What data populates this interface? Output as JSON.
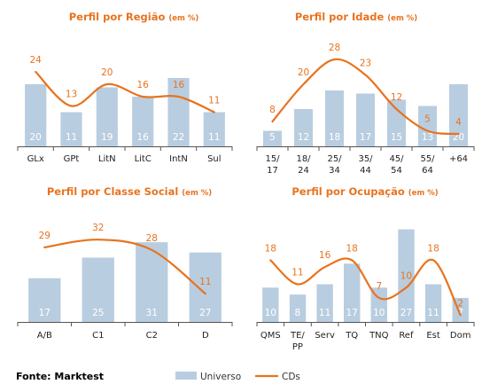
{
  "colors": {
    "universo": "#b9cde0",
    "cds": "#e8731e",
    "axis": "#555555"
  },
  "legend": {
    "universo": "Universo",
    "cds": "CDs"
  },
  "footer": "Fonte: Marktest",
  "chart_data": [
    {
      "id": "regiao",
      "type": "bar",
      "title": "Perfil por Região",
      "title_sub": "(em %)",
      "categories": [
        [
          "GLx"
        ],
        [
          "GPt"
        ],
        [
          "LitN"
        ],
        [
          "LitC"
        ],
        [
          "IntN"
        ],
        [
          "Sul"
        ]
      ],
      "series": [
        {
          "name": "Universo",
          "type": "bar",
          "values": [
            20,
            11,
            19,
            16,
            22,
            11
          ]
        },
        {
          "name": "CDs",
          "type": "line",
          "values": [
            24,
            13,
            20,
            16,
            16,
            11
          ]
        }
      ],
      "ylim": [
        0,
        30
      ]
    },
    {
      "id": "idade",
      "type": "bar",
      "title": "Perfil por Idade",
      "title_sub": "(em %)",
      "categories": [
        [
          "15/",
          "17"
        ],
        [
          "18/",
          "24"
        ],
        [
          "25/",
          "34"
        ],
        [
          "35/",
          "44"
        ],
        [
          "45/",
          "54"
        ],
        [
          "55/",
          "64"
        ],
        [
          "+64"
        ]
      ],
      "series": [
        {
          "name": "Universo",
          "type": "bar",
          "values": [
            5,
            12,
            18,
            17,
            15,
            13,
            20
          ]
        },
        {
          "name": "CDs",
          "type": "line",
          "values": [
            8,
            20,
            28,
            23,
            12,
            5,
            4
          ]
        }
      ],
      "ylim": [
        0,
        30
      ]
    },
    {
      "id": "classe",
      "type": "bar",
      "title": "Perfil por Classe Social",
      "title_sub": "(em %)",
      "categories": [
        [
          "A/B"
        ],
        [
          "C1"
        ],
        [
          "C2"
        ],
        [
          "D"
        ]
      ],
      "series": [
        {
          "name": "Universo",
          "type": "bar",
          "values": [
            17,
            25,
            31,
            27
          ]
        },
        {
          "name": "CDs",
          "type": "line",
          "values": [
            29,
            32,
            28,
            11
          ]
        }
      ],
      "ylim": [
        0,
        40
      ]
    },
    {
      "id": "ocupacao",
      "type": "bar",
      "title": "Perfil por Ocupação",
      "title_sub": "(em %)",
      "categories": [
        [
          "QMS"
        ],
        [
          "TE/",
          "PP"
        ],
        [
          "Serv"
        ],
        [
          "TQ"
        ],
        [
          "TNQ"
        ],
        [
          "Ref"
        ],
        [
          "Est"
        ],
        [
          "Dom"
        ]
      ],
      "series": [
        {
          "name": "Universo",
          "type": "bar",
          "values": [
            10,
            8,
            11,
            17,
            10,
            27,
            11,
            7
          ]
        },
        {
          "name": "CDs",
          "type": "line",
          "values": [
            18,
            11,
            16,
            18,
            7,
            10,
            18,
            2
          ]
        }
      ],
      "ylim": [
        0,
        30
      ]
    }
  ]
}
